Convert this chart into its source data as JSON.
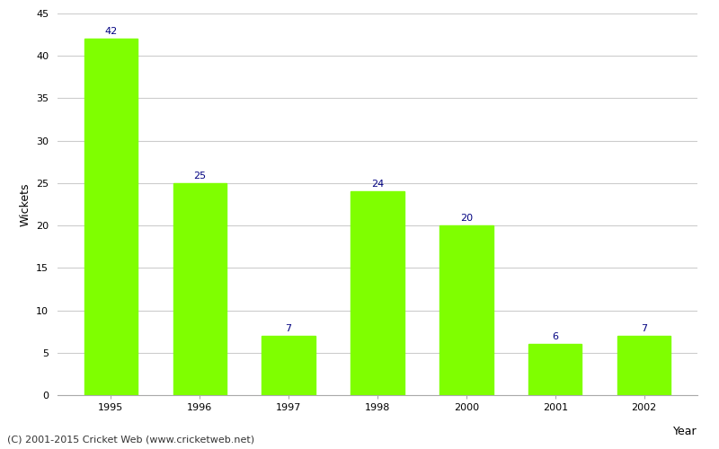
{
  "years": [
    "1995",
    "1996",
    "1997",
    "1998",
    "2000",
    "2001",
    "2002"
  ],
  "values": [
    42,
    25,
    7,
    24,
    20,
    6,
    7
  ],
  "bar_color": "#7fff00",
  "label_color": "#000080",
  "xlabel": "Year",
  "ylabel": "Wickets",
  "ylim": [
    0,
    45
  ],
  "yticks": [
    0,
    5,
    10,
    15,
    20,
    25,
    30,
    35,
    40,
    45
  ],
  "background_color": "#ffffff",
  "grid_color": "#cccccc",
  "footer": "(C) 2001-2015 Cricket Web (www.cricketweb.net)",
  "label_fontsize": 8,
  "axis_label_fontsize": 9,
  "tick_fontsize": 8,
  "footer_fontsize": 8,
  "bar_width": 0.6
}
